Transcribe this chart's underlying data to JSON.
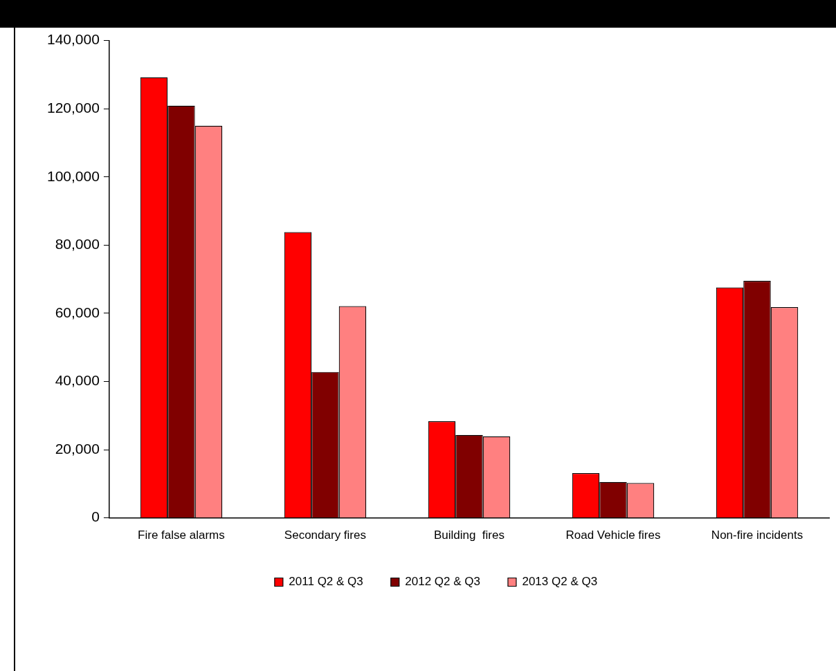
{
  "chart_data": {
    "type": "bar",
    "categories": [
      "Fire false alarms",
      "Secondary fires",
      "Building  fires",
      "Road Vehicle fires",
      "Non-fire incidents"
    ],
    "series": [
      {
        "name": "2011 Q2 & Q3",
        "color": "#ff0000",
        "values": [
          129200,
          83800,
          28300,
          13100,
          67600
        ]
      },
      {
        "name": "2012 Q2 & Q3",
        "color": "#800000",
        "values": [
          120900,
          42800,
          24300,
          10500,
          69500
        ]
      },
      {
        "name": "2013 Q2 & Q3",
        "color": "#ff8080",
        "values": [
          115000,
          62100,
          23900,
          10200,
          61800
        ]
      }
    ],
    "ylim": [
      0,
      140000
    ],
    "yticks": [
      0,
      {
        "value": 20000,
        "label": "20,000"
      },
      {
        "value": 40000,
        "label": "40,000"
      },
      {
        "value": 60000,
        "label": "60,000"
      },
      {
        "value": 80000,
        "label": "80,000"
      },
      {
        "value": 100000,
        "label": "100,000"
      },
      {
        "value": 120000,
        "label": "120,000"
      },
      {
        "value": 140000,
        "label": "140,000"
      }
    ],
    "grid": false,
    "legend": "bottom"
  }
}
